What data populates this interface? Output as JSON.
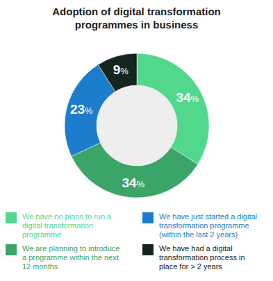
{
  "chart_data": {
    "type": "donut",
    "title": "Adoption of digital transformation programmes in business",
    "categories": [
      "We have no plans to run a digital transformation programme",
      "We are planning to introduce a programme within the next 12 months",
      "We have just started a digital transformation programme (within the last 2 years)",
      "We have had a digital transformation process in place for > 2 years"
    ],
    "values": [
      34,
      34,
      23,
      9
    ],
    "value_labels": [
      "34%",
      "34%",
      "23%",
      "9%"
    ],
    "colors": [
      "#52d88c",
      "#3ba469",
      "#1c7dcd",
      "#13251d"
    ],
    "data_labels": true,
    "legend": "bottom"
  }
}
